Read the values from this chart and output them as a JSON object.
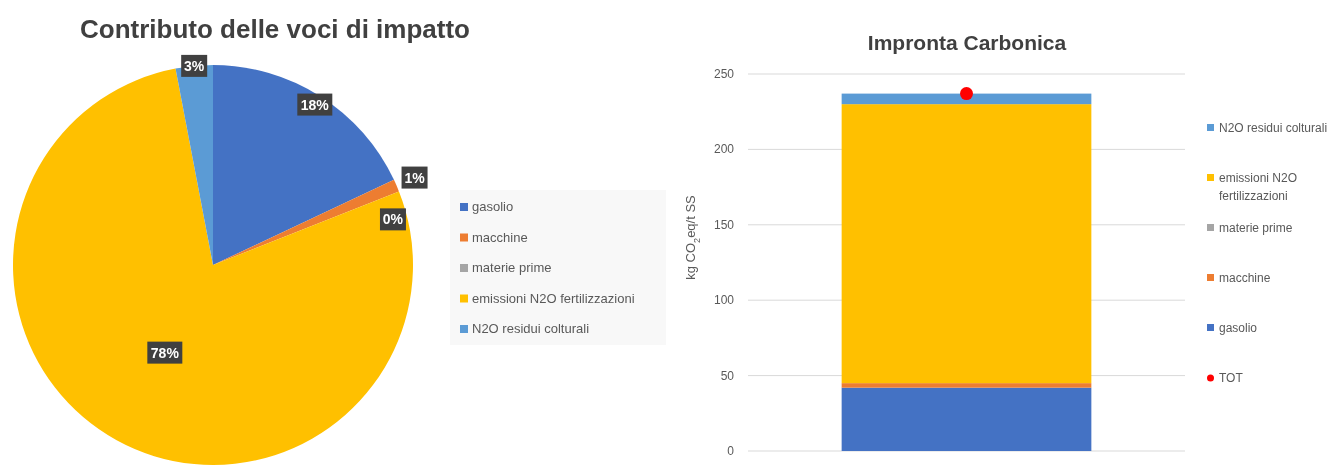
{
  "chart_data": [
    {
      "type": "pie",
      "title": "Contributo delle voci di impatto",
      "categories": [
        "gasolio",
        "macchine",
        "materie prime",
        "emissioni N2O fertilizzazioni",
        "N2O residui colturali"
      ],
      "values": [
        18,
        1,
        0,
        78,
        3
      ],
      "colors": [
        "#4472c4",
        "#ed7d31",
        "#a5a5a5",
        "#ffc000",
        "#5b9bd5"
      ],
      "value_labels": [
        "18%",
        "1%",
        "0%",
        "78%",
        "3%"
      ],
      "legend": "right"
    },
    {
      "type": "bar",
      "title": "Impronta Carbonica",
      "ylabel": "kg CO$_{2}$eq/t SS",
      "categories": [
        null
      ],
      "stacked": true,
      "ylim": [
        0,
        250
      ],
      "yticks": [
        0,
        50,
        100,
        150,
        200,
        250
      ],
      "grid": "y",
      "legend": "right",
      "series": [
        {
          "name": "gasolio",
          "color": "#4472c4",
          "values": [
            42
          ]
        },
        {
          "name": "macchine",
          "color": "#ed7d31",
          "values": [
            3
          ]
        },
        {
          "name": "materie prime",
          "color": "#a5a5a5",
          "values": [
            0
          ]
        },
        {
          "name": "emissioni N2O fertilizzazioni",
          "color": "#ffc000",
          "values": [
            185
          ]
        },
        {
          "name": "N2O residui colturali",
          "color": "#5b9bd5",
          "values": [
            7
          ]
        },
        {
          "name": "TOT",
          "type": "scatter",
          "color": "#ff0000",
          "values": [
            237
          ],
          "marker": "circle"
        }
      ]
    }
  ]
}
